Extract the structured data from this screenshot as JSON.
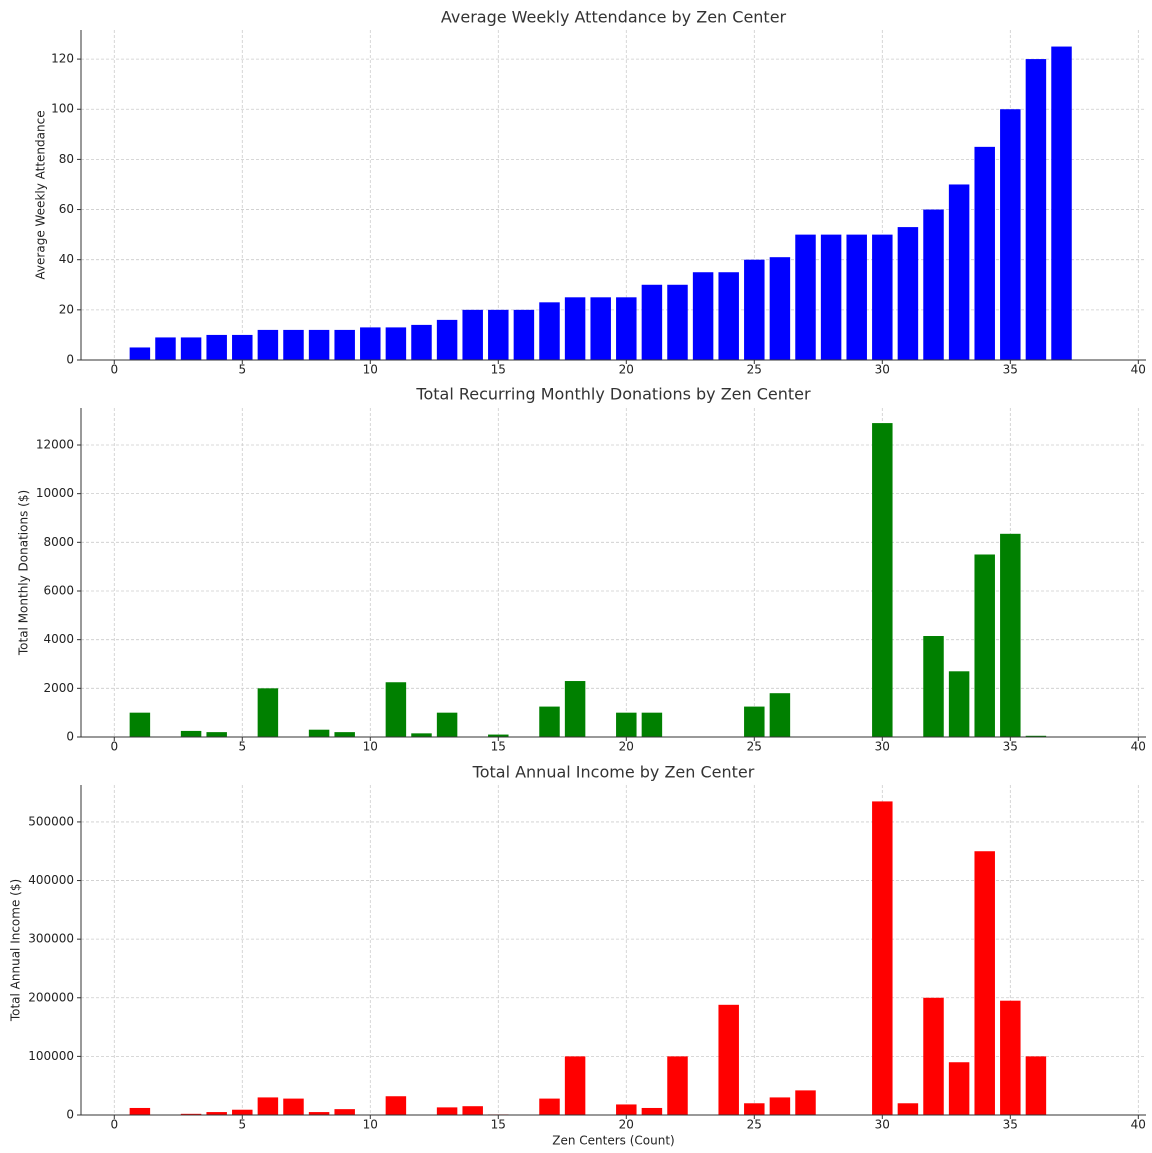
{
  "chart_data": [
    {
      "type": "bar",
      "title": "Average Weekly Attendance by Zen Center",
      "y_label": "Average Weekly Attendance",
      "x": [
        1,
        2,
        3,
        4,
        5,
        6,
        7,
        8,
        9,
        10,
        11,
        12,
        13,
        14,
        15,
        16,
        17,
        18,
        19,
        20,
        21,
        22,
        23,
        24,
        25,
        26,
        27,
        28,
        29,
        30,
        31,
        32,
        33,
        34,
        35,
        36,
        37
      ],
      "values": [
        5,
        9,
        9,
        10,
        10,
        12,
        12,
        12,
        12,
        13,
        13,
        14,
        16,
        20,
        20,
        20,
        23,
        25,
        25,
        25,
        30,
        30,
        35,
        35,
        40,
        41,
        50,
        50,
        50,
        50,
        53,
        60,
        70,
        85,
        100,
        120,
        125
      ],
      "color": "#0000ff",
      "xlim": [
        -1.3,
        40.3
      ],
      "ylim": [
        0,
        131.6
      ],
      "xticks": [
        0,
        5,
        10,
        15,
        20,
        25,
        30,
        35,
        40
      ],
      "yticks": [
        0,
        20,
        40,
        60,
        80,
        100,
        120
      ],
      "grid": true
    },
    {
      "type": "bar",
      "title": "Total Recurring Monthly Donations by Zen Center",
      "y_label": "Total Monthly Donations ($)",
      "x": [
        1,
        2,
        3,
        4,
        5,
        6,
        7,
        8,
        9,
        10,
        11,
        12,
        13,
        14,
        15,
        16,
        17,
        18,
        19,
        20,
        21,
        22,
        23,
        24,
        25,
        26,
        27,
        28,
        29,
        30,
        31,
        32,
        33,
        34,
        35,
        36,
        37
      ],
      "values": [
        1000,
        0,
        250,
        200,
        0,
        2000,
        0,
        300,
        200,
        0,
        2250,
        150,
        1000,
        0,
        100,
        0,
        1250,
        2300,
        0,
        1000,
        1000,
        0,
        0,
        0,
        1250,
        1800,
        0,
        0,
        0,
        12900,
        0,
        4150,
        2700,
        7500,
        8350,
        50,
        0
      ],
      "color": "#008000",
      "xlim": [
        -1.3,
        40.3
      ],
      "ylim": [
        0,
        13520
      ],
      "xticks": [
        0,
        5,
        10,
        15,
        20,
        25,
        30,
        35,
        40
      ],
      "yticks": [
        0,
        2000,
        4000,
        6000,
        8000,
        10000,
        12000
      ],
      "grid": true
    },
    {
      "type": "bar",
      "title": "Total Annual Income by Zen Center",
      "y_label": "Total Annual Income ($)",
      "x_label": "Zen Centers (Count)",
      "x": [
        1,
        2,
        3,
        4,
        5,
        6,
        7,
        8,
        9,
        10,
        11,
        12,
        13,
        14,
        15,
        16,
        17,
        18,
        19,
        20,
        21,
        22,
        23,
        24,
        25,
        26,
        27,
        28,
        29,
        30,
        31,
        32,
        33,
        34,
        35,
        36,
        37
      ],
      "values": [
        12000,
        0,
        2000,
        5000,
        9000,
        30000,
        28000,
        5000,
        10000,
        0,
        32000,
        0,
        13000,
        15000,
        1000,
        0,
        28000,
        100000,
        0,
        18000,
        12000,
        100000,
        0,
        188000,
        20000,
        30000,
        42000,
        0,
        0,
        535000,
        20000,
        200000,
        90000,
        450000,
        195000,
        100000,
        0
      ],
      "color": "#ff0000",
      "xlim": [
        -1.3,
        40.3
      ],
      "ylim": [
        0,
        563000
      ],
      "xticks": [
        0,
        5,
        10,
        15,
        20,
        25,
        30,
        35,
        40
      ],
      "yticks": [
        0,
        100000,
        200000,
        300000,
        400000,
        500000
      ],
      "grid": true
    }
  ]
}
